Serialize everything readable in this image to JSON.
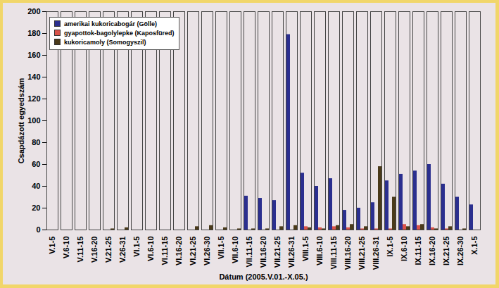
{
  "chart_data": {
    "type": "bar",
    "x_label": "Dátum (2005.V.01.-X.05.)",
    "y_label": "Csapdázott egyedszám",
    "categories": [
      "V.1-5",
      "V.6-10",
      "V.11-15",
      "V.16-20",
      "V.21-25",
      "V.26-31",
      "VI.1-5",
      "VI.6-10",
      "VI.11-15",
      "VI.16-20",
      "VI.21-25",
      "VI.26-30",
      "VII.1-5",
      "VII.6-10",
      "VII.11-15",
      "VII.16-20",
      "VII.21-25",
      "VII.26-31",
      "VIII.1-5",
      "VIII.6-10",
      "VIII.11-15",
      "VIII.16-20",
      "VIII.21-25",
      "VIII.26-31",
      "IX.1-5",
      "IX.6-10",
      "IX.11-15",
      "IX.16-20",
      "IX.21-25",
      "IX.26-30",
      "X.1-5"
    ],
    "series": [
      {
        "name": "amerikai kukoricabogár (Gölle)",
        "color": "#2b2f8f",
        "values": [
          0,
          0,
          0,
          0,
          0,
          0,
          0,
          0,
          0,
          0,
          0,
          0,
          0,
          0,
          31,
          29,
          27,
          179,
          52,
          40,
          47,
          18,
          20,
          25,
          45,
          51,
          54,
          60,
          42,
          30,
          23
        ]
      },
      {
        "name": "gyapottok-bagolylepke (Kaposfüred)",
        "color": "#d9534a",
        "values": [
          0,
          0,
          0,
          0,
          0,
          0,
          0,
          0,
          0,
          0,
          0,
          0,
          0,
          0,
          0,
          0,
          0,
          0,
          3,
          2,
          3,
          2,
          1,
          1,
          1,
          5,
          4,
          2,
          1,
          0,
          0
        ]
      },
      {
        "name": "kukoricamoly (Somogyszil)",
        "color": "#4a3a1a",
        "values": [
          0,
          0,
          0,
          0,
          1,
          2,
          0,
          0,
          0,
          0,
          3,
          4,
          2,
          1,
          1,
          1,
          3,
          4,
          2,
          1,
          4,
          5,
          3,
          58,
          30,
          3,
          5,
          1,
          3,
          1,
          0
        ]
      }
    ],
    "ylim": [
      0,
      200
    ],
    "yticks": [
      0,
      20,
      40,
      60,
      80,
      100,
      120,
      140,
      160,
      180,
      200
    ],
    "grid": false,
    "legend": "top-left"
  }
}
